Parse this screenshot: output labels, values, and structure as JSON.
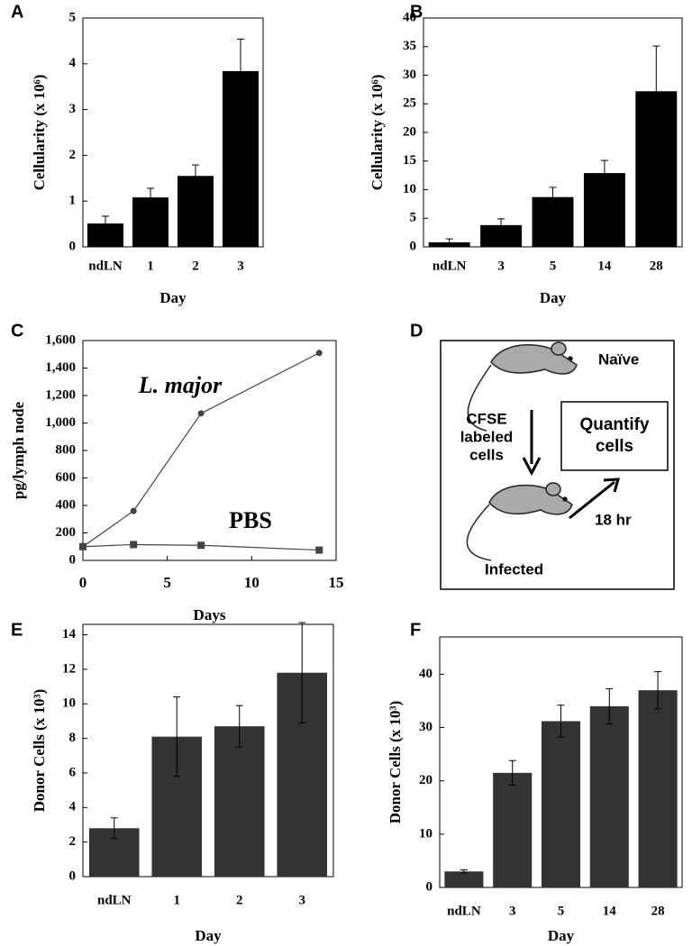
{
  "chart_data": [
    {
      "panel": "A",
      "type": "bar",
      "categories": [
        "ndLN",
        "1",
        "2",
        "3"
      ],
      "values": [
        0.51,
        1.08,
        1.55,
        3.84
      ],
      "errors": [
        0.16,
        0.2,
        0.24,
        0.7
      ],
      "error_bars": "upper",
      "color": "#000000",
      "ylim": [
        0,
        5
      ],
      "yticks": [
        0,
        1,
        2,
        3,
        4,
        5
      ],
      "xlabel": "Day",
      "ylabel": "Cellularity (x 10⁶)"
    },
    {
      "panel": "B",
      "type": "bar",
      "categories": [
        "ndLN",
        "3",
        "5",
        "14",
        "28"
      ],
      "values": [
        0.8,
        3.8,
        8.7,
        12.9,
        27.2
      ],
      "errors": [
        0.6,
        1.1,
        1.7,
        2.2,
        7.9
      ],
      "error_bars": "upper",
      "color": "#000000",
      "ylim": [
        0,
        40
      ],
      "yticks": [
        0,
        5,
        10,
        15,
        20,
        25,
        30,
        35,
        40
      ],
      "xlabel": "Day",
      "ylabel": "Cellularity (x 10⁶)"
    },
    {
      "panel": "C",
      "type": "line",
      "x": [
        0,
        3,
        7,
        14
      ],
      "series": [
        {
          "name": "L. major",
          "color": "#444444",
          "marker": "circle",
          "values": [
            100,
            360,
            1070,
            1510
          ]
        },
        {
          "name": "PBS",
          "color": "#444444",
          "marker": "square",
          "values": [
            100,
            115,
            110,
            75
          ]
        }
      ],
      "xlim": [
        0,
        15
      ],
      "xticks": [
        0,
        5,
        10,
        15
      ],
      "ylim": [
        0,
        1600
      ],
      "yticks": [
        0,
        200,
        400,
        600,
        800,
        {
          "value": 1000,
          "label": "1,000"
        },
        {
          "value": 1200,
          "label": "1,200"
        },
        {
          "value": 1400,
          "label": "1,400"
        },
        {
          "value": 1600,
          "label": "1,600"
        }
      ],
      "xlabel": "Days",
      "ylabel": "pg/lymph node"
    },
    {
      "panel": "E",
      "type": "bar",
      "categories": [
        "ndLN",
        "1",
        "2",
        "3"
      ],
      "values": [
        2.8,
        8.1,
        8.7,
        11.8
      ],
      "errors": [
        0.6,
        2.3,
        1.2,
        2.9
      ],
      "error_bars": "both",
      "color": "#333333",
      "ylim": [
        0,
        14.6
      ],
      "yticks": [
        0,
        2,
        4,
        6,
        8,
        10,
        12,
        14
      ],
      "xlabel": "Day",
      "ylabel": "Donor Cells (x 10³)"
    },
    {
      "panel": "F",
      "type": "bar",
      "categories": [
        "ndLN",
        "3",
        "5",
        "14",
        "28"
      ],
      "values": [
        3.0,
        21.5,
        31.2,
        34.0,
        37.0
      ],
      "errors": [
        0.3,
        2.3,
        3.0,
        3.3,
        3.5
      ],
      "error_bars": "both",
      "color": "#333333",
      "ylim": [
        0,
        47
      ],
      "yticks": [
        0,
        10,
        20,
        30,
        40
      ],
      "xlabel": "Day",
      "ylabel": "Donor Cells (x 10³)"
    }
  ],
  "diagram": {
    "panel": "D",
    "top_label": "Naïve",
    "arrow_label": [
      "CFSE",
      "labeled",
      "cells"
    ],
    "box_label": [
      "Quantify",
      "cells"
    ],
    "time_label": "18 hr",
    "bottom_label": "Infected"
  }
}
